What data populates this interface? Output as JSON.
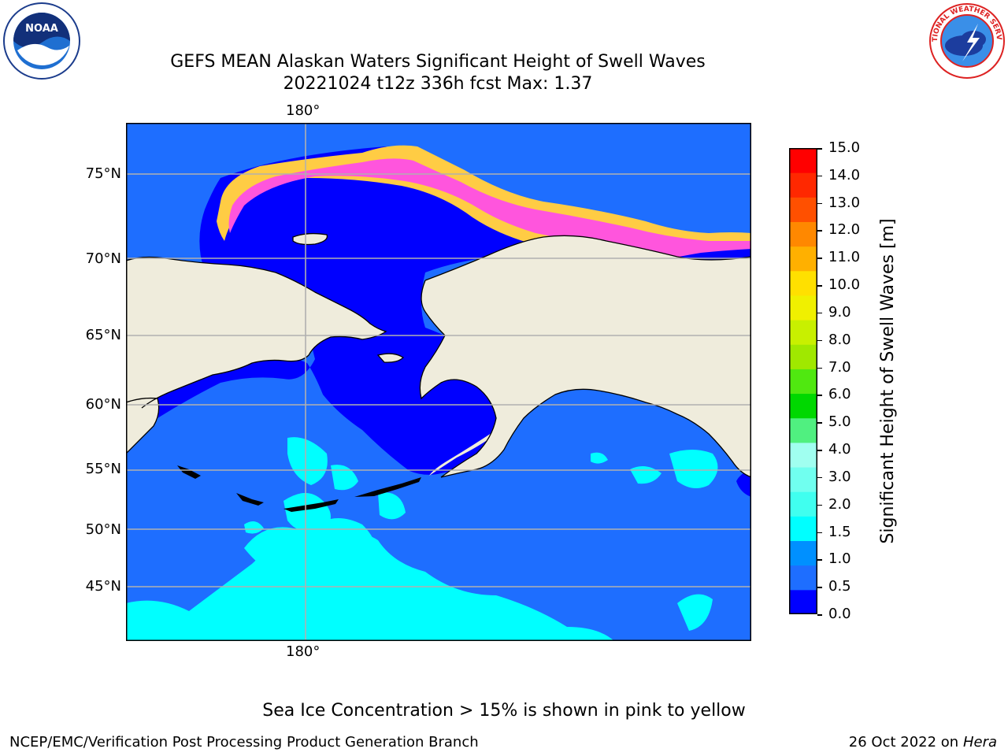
{
  "title_line1": "GEFS MEAN Alaskan Waters Significant Height of Swell Waves",
  "title_line2": "20221024 t12z 336h fcst   Max: 1.37",
  "lon_label_top": "180°",
  "lon_label_bottom": "180°",
  "lat_labels": [
    "75°N",
    "70°N",
    "65°N",
    "60°N",
    "55°N",
    "50°N",
    "45°N"
  ],
  "colorbar": {
    "title": "Significant Height of Swell Waves [m]",
    "ticks": [
      "15.0",
      "14.0",
      "13.0",
      "12.0",
      "11.0",
      "10.0",
      "9.0",
      "8.0",
      "7.0",
      "6.0",
      "5.0",
      "4.0",
      "3.0",
      "2.0",
      "1.5",
      "1.0",
      "0.5",
      "0.0"
    ],
    "colors_bottom_to_top": [
      "#0000ff",
      "#1e6eff",
      "#0090ff",
      "#00ffff",
      "#40ffef",
      "#70ffef",
      "#a0fff0",
      "#50f080",
      "#00d800",
      "#50e810",
      "#a0e800",
      "#c8f000",
      "#f0f000",
      "#ffe000",
      "#ffb000",
      "#ff8800",
      "#ff5000",
      "#ff2800",
      "#ff0000"
    ]
  },
  "map_colors": {
    "land": "#efecdc",
    "ocean_low": "#1e6eff",
    "ocean_mid": "#00ffff",
    "near_shore": "#0000ff",
    "ice_edge": "#ff55dd",
    "ice_outer": "#ffcc44",
    "grid": "#b0b0b0"
  },
  "footer_note": "Sea Ice Concentration > 15% is shown in pink to yellow",
  "credit": "NCEP/EMC/Verification Post Processing Product Generation Branch",
  "date_prefix": "26 Oct 2022 on",
  "date_machine": "Hera",
  "logos": {
    "left": "noaa-logo",
    "right": "nws-logo"
  },
  "logo_text": {
    "noaa": "NOAA",
    "nws": "NATIONAL WEATHER SERVICE"
  }
}
